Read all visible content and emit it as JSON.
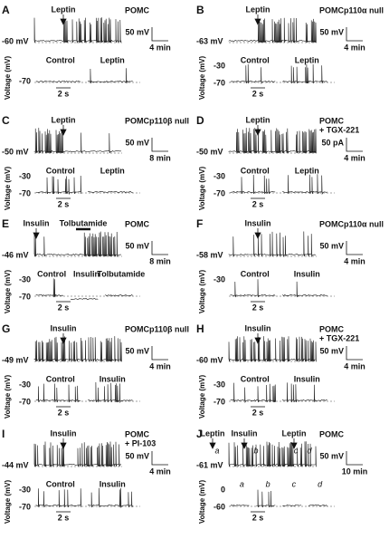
{
  "panels": [
    {
      "letter": "A",
      "title": [
        "POMC"
      ],
      "events": [
        "Leptin"
      ],
      "baseline": "-60 mV",
      "scale_v": "50 mV",
      "scale_t": "4 min",
      "inset_ylabel": "Voltage (mV)",
      "inset_ticks": [
        "-70"
      ],
      "inset_labels": [
        "Control",
        "Leptin"
      ],
      "inset_time": "2 s"
    },
    {
      "letter": "B",
      "title": [
        "POMCp110α null"
      ],
      "events": [
        "Leptin"
      ],
      "baseline": "-63 mV",
      "scale_v": "50 mV",
      "scale_t": "4 min",
      "inset_ylabel": "Voltage (mV)",
      "inset_ticks": [
        "-30",
        "-70"
      ],
      "inset_labels": [
        "Control",
        "Leptin"
      ],
      "inset_time": "2 s"
    },
    {
      "letter": "C",
      "title": [
        "POMCp110β null"
      ],
      "events": [
        "Leptin"
      ],
      "baseline": "-50 mV",
      "scale_v": "50 mV",
      "scale_t": "8 min",
      "inset_ylabel": "Voltage (mV)",
      "inset_ticks": [
        "-30",
        "-70"
      ],
      "inset_labels": [
        "Control",
        "Leptin"
      ],
      "inset_time": "2 s"
    },
    {
      "letter": "D",
      "title": [
        "POMC",
        "+ TGX-221"
      ],
      "events": [
        "Leptin"
      ],
      "baseline": "-50 mV",
      "scale_v": "50 pA",
      "scale_t": "4 min",
      "inset_ylabel": "Voltage (mV)",
      "inset_ticks": [
        "-30",
        "-70"
      ],
      "inset_labels": [
        "Control",
        "Leptin"
      ],
      "inset_time": "2 s"
    },
    {
      "letter": "E",
      "title": [
        "POMC"
      ],
      "events": [
        "Insulin",
        "Tolbutamide"
      ],
      "baseline": "-46 mV",
      "scale_v": "50 mV",
      "scale_t": "8 min",
      "inset_ylabel": "Voltage (mV)",
      "inset_ticks": [
        "-30",
        "-70"
      ],
      "inset_labels": [
        "Control",
        "Insulin",
        "Tolbutamide"
      ],
      "inset_time": "2 s"
    },
    {
      "letter": "F",
      "title": [
        "POMCp110α null"
      ],
      "events": [
        "Insulin"
      ],
      "baseline": "-58 mV",
      "scale_v": "50 mV",
      "scale_t": "4 min",
      "inset_ylabel": "Voltage (mV)",
      "inset_ticks": [
        "-30"
      ],
      "inset_labels": [
        "Control",
        "Insulin"
      ],
      "inset_time": "2 s"
    },
    {
      "letter": "G",
      "title": [
        "POMCp110β null"
      ],
      "events": [
        "Insulin"
      ],
      "baseline": "-49 mV",
      "scale_v": "50 mV",
      "scale_t": "4 min",
      "inset_ylabel": "Voltage (mV)",
      "inset_ticks": [
        "-30",
        "-70"
      ],
      "inset_labels": [
        "Control",
        "Insulin"
      ],
      "inset_time": "2 s"
    },
    {
      "letter": "H",
      "title": [
        "POMC",
        "+ TGX-221"
      ],
      "events": [
        "Insulin"
      ],
      "baseline": "-60 mV",
      "scale_v": "50 mV",
      "scale_t": "4 min",
      "inset_ylabel": "Voltage (mV)",
      "inset_ticks": [
        "-30",
        "-70"
      ],
      "inset_labels": [
        "Control",
        "Insulin"
      ],
      "inset_time": "2 s"
    },
    {
      "letter": "I",
      "title": [
        "POMC",
        "+ PI-103"
      ],
      "events": [
        "Insulin"
      ],
      "baseline": "-44 mV",
      "scale_v": "50 mV",
      "scale_t": "4 min",
      "inset_ylabel": "Voltage (mV)",
      "inset_ticks": [
        "-30",
        "-70"
      ],
      "inset_labels": [
        "Control",
        "Insulin"
      ],
      "inset_time": "2 s"
    },
    {
      "letter": "J",
      "title": [
        "POMC"
      ],
      "events": [
        "Leptin",
        "Insulin",
        "Leptin"
      ],
      "markers": [
        "a",
        "b",
        "c",
        "d"
      ],
      "baseline": "-61 mV",
      "scale_v": "50 mV",
      "scale_t": "10 min",
      "inset_ylabel": "Voltage (mV)",
      "inset_ticks": [
        "0",
        "-60"
      ],
      "inset_labels": [
        "a",
        "b",
        "c",
        "d"
      ],
      "inset_time": "2 s"
    }
  ]
}
